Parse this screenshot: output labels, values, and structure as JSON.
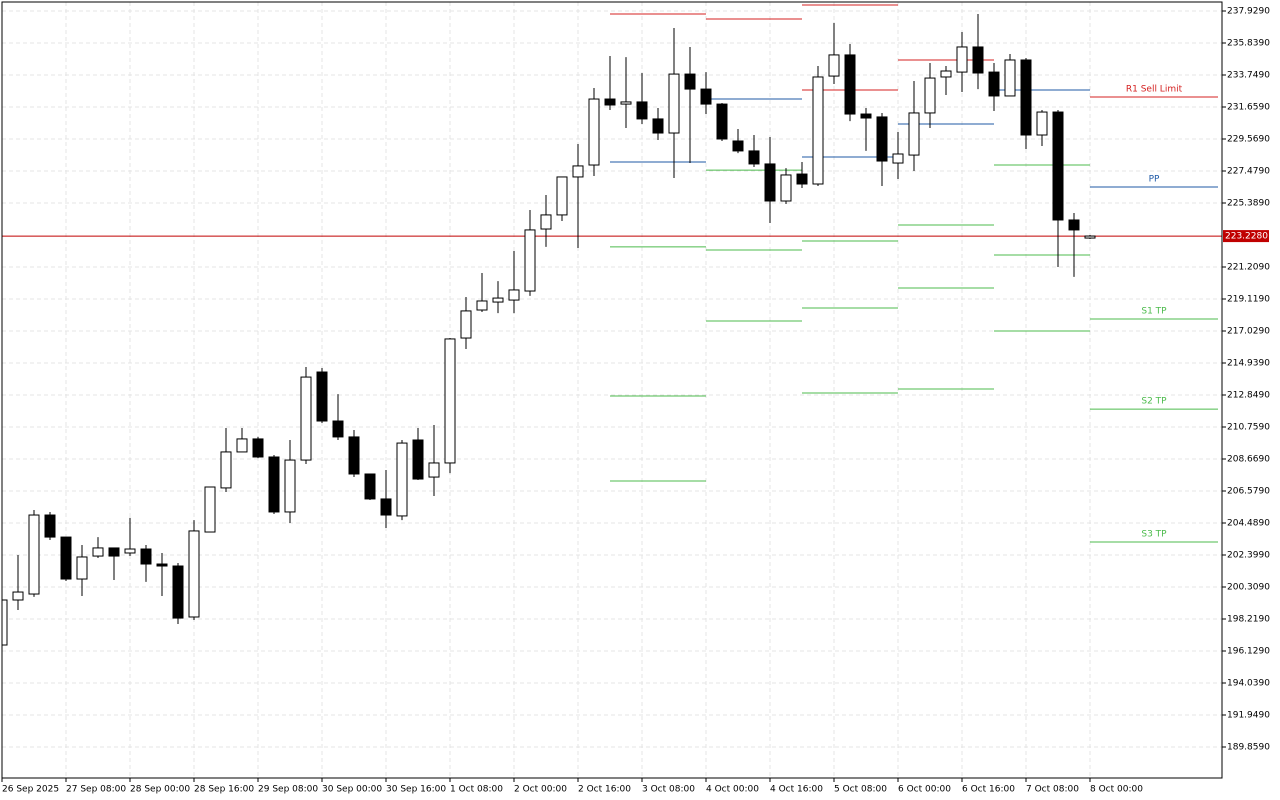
{
  "chart_data": {
    "type": "candlestick",
    "categories": [
      "26 Sep 2025",
      null,
      null,
      null,
      "27 Sep 08:00",
      null,
      null,
      null,
      "28 Sep 00:00",
      null,
      null,
      null,
      "28 Sep 16:00",
      null,
      null,
      null,
      "29 Sep 08:00",
      null,
      null,
      null,
      "30 Sep 00:00",
      null,
      null,
      null,
      "30 Sep 16:00",
      null,
      null,
      null,
      "1 Oct 08:00",
      null,
      null,
      null,
      "2 Oct 00:00",
      null,
      null,
      null,
      "2 Oct 16:00",
      null,
      null,
      null,
      "3 Oct 08:00",
      null,
      null,
      null,
      "4 Oct 00:00",
      null,
      null,
      null,
      "4 Oct 16:00",
      null,
      null,
      null,
      "5 Oct 08:00",
      null,
      null,
      null,
      "6 Oct 00:00",
      null,
      null,
      null,
      "6 Oct 16:00",
      null,
      null,
      null,
      "7 Oct 08:00",
      null,
      null,
      null,
      "8 Oct 00:00"
    ],
    "open": [
      196.52,
      199.46,
      199.85,
      205.01,
      203.57,
      200.83,
      202.33,
      202.86,
      202.53,
      202.79,
      201.81,
      201.68,
      198.35,
      203.9,
      206.78,
      209.13,
      209.98,
      208.8,
      205.21,
      208.6,
      214.35,
      211.15,
      210.11,
      207.69,
      206.06,
      204.95,
      209.91,
      207.49,
      208.41,
      216.57,
      218.4,
      218.92,
      219.05,
      219.64,
      223.69,
      224.61,
      227.09,
      227.87,
      232.18,
      231.85,
      231.99,
      230.88,
      229.96,
      233.81,
      232.83,
      231.85,
      229.44,
      228.79,
      227.94,
      225.52,
      227.28,
      226.63,
      233.68,
      235.06,
      231.2,
      231.01,
      228.0,
      228.52,
      231.27,
      233.62,
      233.94,
      235.58,
      233.94,
      232.38,
      234.73,
      229.83,
      231.33,
      224.28,
      223.1
    ],
    "high": [
      199.59,
      202.4,
      205.34,
      205.21,
      203.57,
      203.05,
      203.57,
      202.86,
      204.82,
      203.05,
      202.53,
      201.88,
      204.68,
      206.84,
      210.69,
      210.69,
      210.11,
      208.93,
      209.91,
      214.68,
      214.61,
      212.91,
      210.56,
      207.69,
      207.95,
      209.91,
      210.69,
      210.89,
      216.57,
      219.25,
      220.82,
      220.29,
      222.25,
      224.93,
      225.91,
      227.09,
      229.24,
      232.9,
      234.99,
      234.92,
      233.88,
      231.59,
      236.82,
      235.58,
      233.94,
      231.92,
      230.22,
      229.83,
      229.7,
      227.67,
      228.07,
      234.34,
      237.15,
      235.77,
      231.59,
      231.27,
      230.03,
      233.36,
      234.53,
      234.34,
      236.56,
      237.73,
      234.53,
      235.12,
      234.86,
      231.46,
      231.46,
      224.74,
      223.3
    ],
    "low": [
      196.52,
      198.81,
      199.66,
      203.38,
      200.7,
      199.72,
      202.2,
      200.77,
      202.33,
      200.64,
      199.72,
      197.89,
      198.15,
      203.9,
      206.51,
      209.13,
      208.73,
      205.08,
      204.49,
      208.34,
      211.02,
      209.91,
      207.49,
      205.99,
      204.16,
      204.68,
      207.3,
      206.25,
      207.75,
      215.85,
      218.27,
      218.2,
      218.2,
      219.32,
      222.52,
      224.21,
      222.45,
      227.15,
      231.46,
      230.29,
      230.55,
      229.5,
      227.02,
      228.0,
      231.2,
      229.44,
      228.65,
      227.74,
      224.08,
      225.32,
      226.37,
      226.5,
      233.16,
      230.74,
      228.79,
      226.5,
      226.96,
      227.48,
      230.29,
      232.44,
      232.64,
      232.83,
      231.4,
      232.38,
      228.92,
      229.11,
      221.21,
      220.56,
      223.04
    ],
    "close": [
      199.46,
      199.98,
      205.01,
      203.57,
      200.83,
      202.27,
      202.86,
      202.33,
      202.79,
      201.81,
      201.68,
      198.28,
      203.97,
      206.84,
      209.13,
      209.98,
      208.8,
      205.21,
      208.6,
      214.02,
      211.15,
      210.11,
      207.69,
      206.06,
      205.01,
      209.71,
      207.36,
      208.41,
      216.51,
      218.34,
      218.99,
      219.18,
      219.71,
      223.63,
      224.61,
      227.09,
      227.81,
      232.18,
      231.79,
      231.99,
      230.88,
      229.96,
      233.81,
      232.83,
      231.85,
      229.57,
      228.79,
      227.94,
      225.52,
      227.22,
      226.63,
      233.62,
      235.06,
      231.2,
      230.94,
      228.13,
      228.59,
      231.27,
      233.55,
      234.01,
      235.58,
      233.88,
      232.38,
      234.73,
      229.83,
      231.33,
      224.28,
      223.63,
      223.23
    ],
    "up_color": "#ffffff",
    "down_color": "#000000",
    "ylim": [
      187.834,
      238.517
    ],
    "yticks": [
      {
        "value": 237.929,
        "label": "237.9290"
      },
      {
        "value": 235.839,
        "label": "235.8390"
      },
      {
        "value": 233.749,
        "label": "233.7490"
      },
      {
        "value": 231.659,
        "label": "231.6590"
      },
      {
        "value": 229.569,
        "label": "229.5690"
      },
      {
        "value": 227.479,
        "label": "227.4790"
      },
      {
        "value": 225.389,
        "label": "225.3890"
      },
      {
        "value": 221.209,
        "label": "221.2090"
      },
      {
        "value": 219.119,
        "label": "219.1190"
      },
      {
        "value": 217.029,
        "label": "217.0290"
      },
      {
        "value": 214.939,
        "label": "214.9390"
      },
      {
        "value": 212.849,
        "label": "212.8490"
      },
      {
        "value": 210.759,
        "label": "210.7590"
      },
      {
        "value": 208.669,
        "label": "208.6690"
      },
      {
        "value": 206.579,
        "label": "206.5790"
      },
      {
        "value": 204.489,
        "label": "204.4890"
      },
      {
        "value": 202.399,
        "label": "202.3990"
      },
      {
        "value": 200.309,
        "label": "200.3090"
      },
      {
        "value": 198.219,
        "label": "198.2190"
      },
      {
        "value": 196.129,
        "label": "196.1290"
      },
      {
        "value": 194.039,
        "label": "194.0390"
      },
      {
        "value": 191.949,
        "label": "191.9490"
      },
      {
        "value": 189.859,
        "label": "189.8590"
      }
    ],
    "grid": true,
    "current_price": {
      "value": 223.228,
      "label": "223.2280",
      "color": "#c00000"
    },
    "levels": [
      {
        "color": "#d42020",
        "start": 38,
        "end": 44,
        "value": 237.73
      },
      {
        "color": "#1f5aa6",
        "start": 38,
        "end": 44,
        "value": 228.07
      },
      {
        "color": "#4cbb4c",
        "start": 38,
        "end": 44,
        "value": 222.52
      },
      {
        "color": "#4cbb4c",
        "start": 38,
        "end": 44,
        "value": 212.78
      },
      {
        "color": "#4cbb4c",
        "start": 38,
        "end": 44,
        "value": 207.23
      },
      {
        "color": "#d42020",
        "start": 44,
        "end": 50,
        "value": 237.41
      },
      {
        "color": "#1f5aa6",
        "start": 44,
        "end": 50,
        "value": 232.18
      },
      {
        "color": "#4cbb4c",
        "start": 44,
        "end": 50,
        "value": 227.54
      },
      {
        "color": "#4cbb4c",
        "start": 44,
        "end": 50,
        "value": 222.32
      },
      {
        "color": "#4cbb4c",
        "start": 44,
        "end": 50,
        "value": 217.68
      },
      {
        "color": "#d42020",
        "start": 50,
        "end": 56,
        "value": 238.32
      },
      {
        "color": "#d42020",
        "start": 50,
        "end": 56,
        "value": 232.77
      },
      {
        "color": "#1f5aa6",
        "start": 50,
        "end": 56,
        "value": 228.39
      },
      {
        "color": "#4cbb4c",
        "start": 50,
        "end": 56,
        "value": 222.91
      },
      {
        "color": "#4cbb4c",
        "start": 50,
        "end": 56,
        "value": 218.53
      },
      {
        "color": "#4cbb4c",
        "start": 50,
        "end": 56,
        "value": 212.98
      },
      {
        "color": "#d42020",
        "start": 56,
        "end": 62,
        "value": 234.73
      },
      {
        "color": "#1f5aa6",
        "start": 56,
        "end": 62,
        "value": 230.55
      },
      {
        "color": "#4cbb4c",
        "start": 56,
        "end": 62,
        "value": 223.95
      },
      {
        "color": "#4cbb4c",
        "start": 56,
        "end": 62,
        "value": 219.84
      },
      {
        "color": "#4cbb4c",
        "start": 56,
        "end": 62,
        "value": 213.24
      },
      {
        "color": "#1f5aa6",
        "start": 62,
        "end": 68,
        "value": 232.77
      },
      {
        "color": "#4cbb4c",
        "start": 62,
        "end": 68,
        "value": 227.87
      },
      {
        "color": "#4cbb4c",
        "start": 62,
        "end": 68,
        "value": 221.99
      },
      {
        "color": "#4cbb4c",
        "start": 62,
        "end": 68,
        "value": 217.03
      },
      {
        "color": "#d42020",
        "start": 68,
        "end": 76,
        "value": 232.31,
        "label": "R1 Sell Limit"
      },
      {
        "color": "#1f5aa6",
        "start": 68,
        "end": 76,
        "value": 226.43,
        "label": "PP"
      },
      {
        "color": "#4cbb4c",
        "start": 68,
        "end": 76,
        "value": 217.81,
        "label": "S1 TP"
      },
      {
        "color": "#4cbb4c",
        "start": 68,
        "end": 76,
        "value": 211.93,
        "label": "S2 TP"
      },
      {
        "color": "#4cbb4c",
        "start": 68,
        "end": 76,
        "value": 203.25,
        "label": "S3 TP"
      }
    ]
  }
}
